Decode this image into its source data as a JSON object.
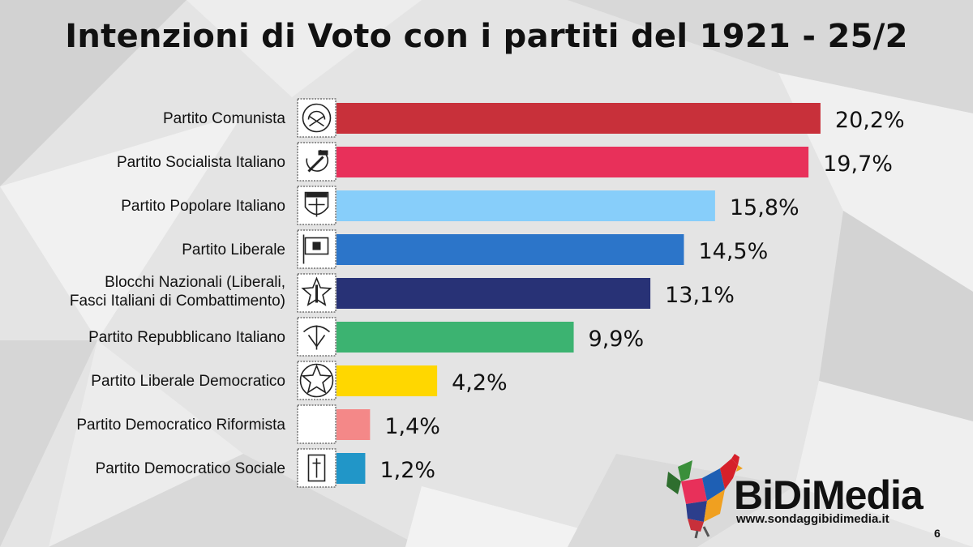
{
  "page": {
    "title": "Intenzioni di Voto con i partiti del 1921 - 25/2",
    "page_number": "6"
  },
  "brand": {
    "name": "BiDiMedia",
    "url": "www.sondaggibidimedia.it"
  },
  "chart_data": {
    "type": "bar",
    "orientation": "horizontal",
    "title": "Intenzioni di Voto con i partiti del 1921 - 25/2",
    "xlabel": "",
    "ylabel": "",
    "xlim": [
      0,
      22
    ],
    "grid": false,
    "legend": "none",
    "categories": [
      [
        "Partito Comunista"
      ],
      [
        "Partito Socialista Italiano"
      ],
      [
        "Partito Popolare Italiano"
      ],
      [
        "Partito Liberale"
      ],
      [
        "Blocchi Nazionali (Liberali,",
        "Fasci Italiani di Combattimento)"
      ],
      [
        "Partito Repubblicano Italiano"
      ],
      [
        "Partito Liberale Democratico"
      ],
      [
        "Partito Democratico Riformista"
      ],
      [
        "Partito Democratico Sociale"
      ]
    ],
    "values": [
      20.2,
      19.7,
      15.8,
      14.5,
      13.1,
      9.9,
      4.2,
      1.4,
      1.2
    ],
    "value_labels": [
      "20,2%",
      "19,7%",
      "15,8%",
      "14,5%",
      "13,1%",
      "9,9%",
      "4,2%",
      "1,4%",
      "1,2%"
    ],
    "colors": [
      "#c8303a",
      "#e8305a",
      "#87cefa",
      "#2c75c9",
      "#283276",
      "#3cb371",
      "#ffd700",
      "#f48888",
      "#2196c8"
    ],
    "icons": [
      "communist-emblem-icon",
      "hammer-sickle-icon",
      "libertas-shield-icon",
      "liberal-flag-icon",
      "star-fasces-icon",
      "republican-emblem-icon",
      "liberal-democratic-star-icon",
      "blank-icon",
      "social-democratic-emblem-icon"
    ]
  }
}
